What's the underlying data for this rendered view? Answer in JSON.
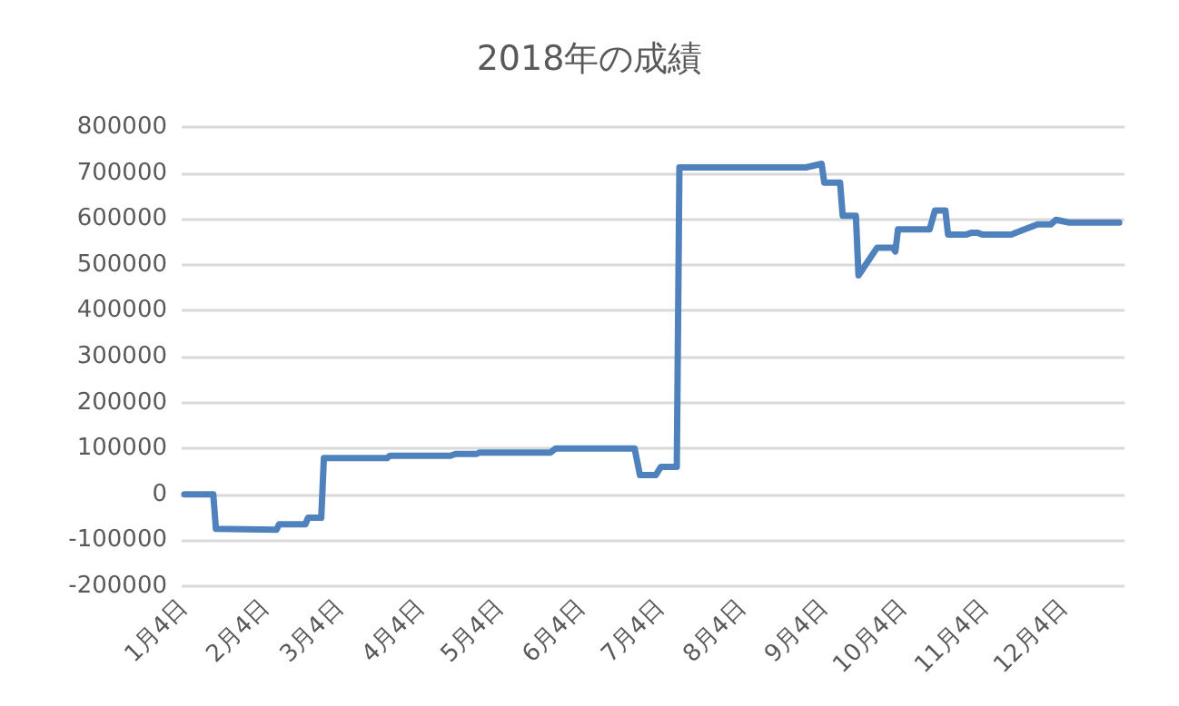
{
  "chart_data": {
    "type": "line",
    "title": "2018年の成績",
    "x": [
      "2018-01-04",
      "2018-01-15",
      "2018-01-16",
      "2018-02-08",
      "2018-02-09",
      "2018-02-19",
      "2018-02-20",
      "2018-02-25",
      "2018-02-26",
      "2018-03-22",
      "2018-03-23",
      "2018-04-15",
      "2018-04-17",
      "2018-04-25",
      "2018-04-26",
      "2018-05-23",
      "2018-05-25",
      "2018-06-24",
      "2018-06-26",
      "2018-07-02",
      "2018-07-04",
      "2018-07-10",
      "2018-07-11",
      "2018-08-28",
      "2018-09-03",
      "2018-09-04",
      "2018-09-10",
      "2018-09-11",
      "2018-09-16",
      "2018-09-17",
      "2018-09-24",
      "2018-09-30",
      "2018-10-01",
      "2018-10-02",
      "2018-10-14",
      "2018-10-16",
      "2018-10-20",
      "2018-10-21",
      "2018-10-28",
      "2018-10-30",
      "2018-11-01",
      "2018-11-03",
      "2018-11-14",
      "2018-11-19",
      "2018-11-24",
      "2018-11-29",
      "2018-12-01",
      "2018-12-06",
      "2018-12-25"
    ],
    "series": [
      {
        "color": "#4f81bd",
        "values": [
          0,
          0,
          -75000,
          -77000,
          -65000,
          -65000,
          -51000,
          -51000,
          79000,
          79000,
          84000,
          84000,
          88000,
          88000,
          91000,
          91000,
          100000,
          100000,
          42000,
          42000,
          60000,
          60000,
          712000,
          712000,
          720000,
          679000,
          679000,
          607000,
          607000,
          477000,
          537000,
          537000,
          529000,
          577000,
          577000,
          618000,
          618000,
          566000,
          566000,
          570000,
          570000,
          566000,
          566000,
          577000,
          588000,
          588000,
          598000,
          592000,
          592000
        ]
      }
    ],
    "xlim": [
      "2018-01-03",
      "2018-12-27"
    ],
    "xticks": [
      {
        "value": "2018-01-04",
        "label": "1月4日"
      },
      {
        "value": "2018-02-04",
        "label": "2月4日"
      },
      {
        "value": "2018-03-04",
        "label": "3月4日"
      },
      {
        "value": "2018-04-04",
        "label": "4月4日"
      },
      {
        "value": "2018-05-04",
        "label": "5月4日"
      },
      {
        "value": "2018-06-04",
        "label": "6月4日"
      },
      {
        "value": "2018-07-04",
        "label": "7月4日"
      },
      {
        "value": "2018-08-04",
        "label": "8月4日"
      },
      {
        "value": "2018-09-04",
        "label": "9月4日"
      },
      {
        "value": "2018-10-04",
        "label": "10月4日"
      },
      {
        "value": "2018-11-04",
        "label": "11月4日"
      },
      {
        "value": "2018-12-04",
        "label": "12月4日"
      }
    ],
    "ylim": [
      -200000,
      800000
    ],
    "yticks": [
      -200000,
      -100000,
      0,
      100000,
      200000,
      300000,
      400000,
      500000,
      600000,
      700000,
      800000
    ],
    "grid": "y",
    "marker": "none",
    "line_style": "solid"
  }
}
